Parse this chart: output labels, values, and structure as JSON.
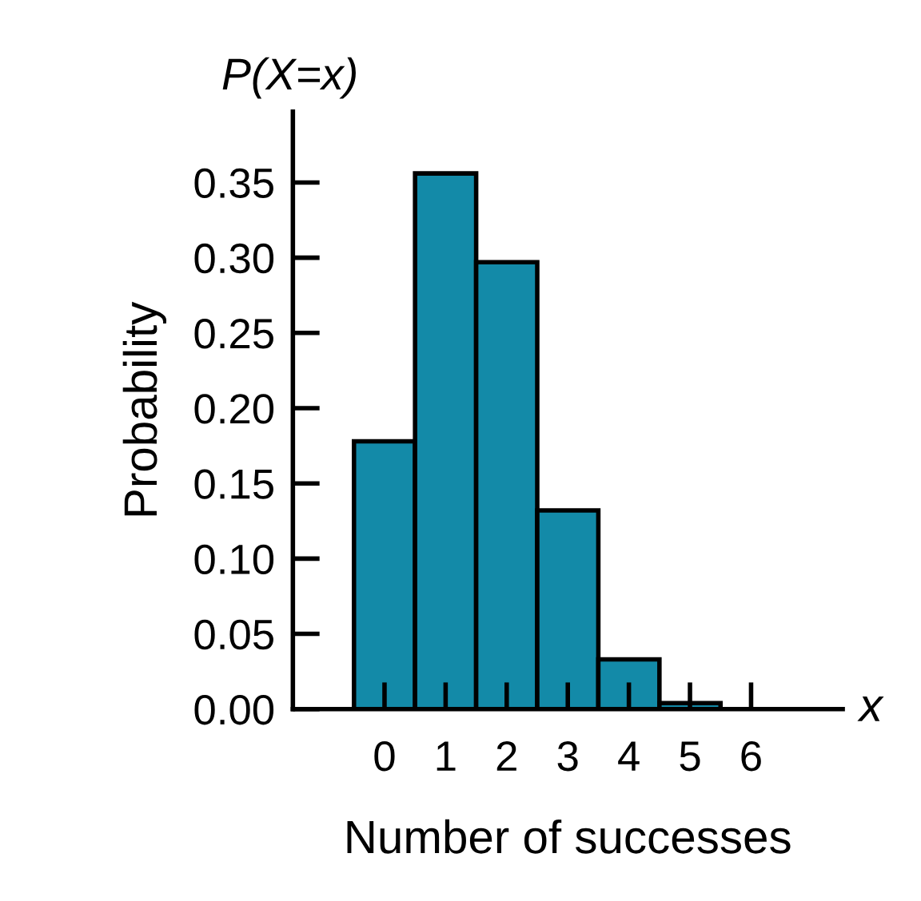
{
  "chart_data": {
    "type": "histogram",
    "title": "P(X=x)",
    "xlabel": "Number of successes",
    "ylabel": "Probability",
    "annotations": [
      "x"
    ],
    "bins": [
      -0.5,
      0.5,
      1.5,
      2.5,
      3.5,
      4.5,
      5.5,
      6.5
    ],
    "values": [
      0.178,
      0.356,
      0.297,
      0.132,
      0.033,
      0.004,
      null
    ],
    "color": "#138aa8",
    "xlim": [
      -1.5,
      7.5
    ],
    "xticks": [
      0,
      1,
      2,
      3,
      4,
      5,
      6
    ],
    "ylim": [
      0,
      0.397
    ],
    "yticks": [
      {
        "value": 0,
        "label": "0.00"
      },
      {
        "value": 0.05,
        "label": "0.05"
      },
      {
        "value": 0.1,
        "label": "0.10"
      },
      {
        "value": 0.15,
        "label": "0.15"
      },
      {
        "value": 0.2,
        "label": "0.20"
      },
      {
        "value": 0.25,
        "label": "0.25"
      },
      {
        "value": 0.3,
        "label": "0.30"
      },
      {
        "value": 0.35,
        "label": "0.35"
      }
    ],
    "grid": false,
    "legend": false
  }
}
